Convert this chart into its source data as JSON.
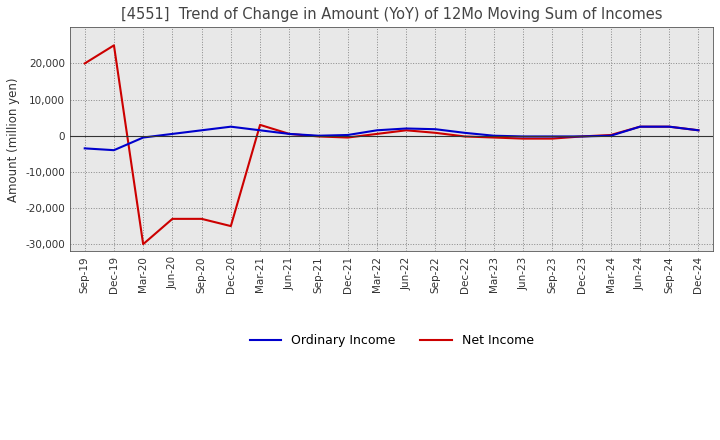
{
  "title": "[4551]  Trend of Change in Amount (YoY) of 12Mo Moving Sum of Incomes",
  "ylabel": "Amount (million yen)",
  "background_color": "#ffffff",
  "plot_bg_color": "#e8e8e8",
  "grid_color": "#aaaaaa",
  "x_labels": [
    "Sep-19",
    "Dec-19",
    "Mar-20",
    "Jun-20",
    "Sep-20",
    "Dec-20",
    "Mar-21",
    "Jun-21",
    "Sep-21",
    "Dec-21",
    "Mar-22",
    "Jun-22",
    "Sep-22",
    "Dec-22",
    "Mar-23",
    "Jun-23",
    "Sep-23",
    "Dec-23",
    "Mar-24",
    "Jun-24",
    "Sep-24",
    "Dec-24"
  ],
  "ordinary_income": [
    -3500,
    -4000,
    -500,
    500,
    1500,
    2500,
    1500,
    500,
    0,
    200,
    1500,
    2000,
    1800,
    800,
    0,
    -200,
    -200,
    -200,
    0,
    2500,
    2500,
    1500
  ],
  "net_income": [
    20000,
    25000,
    -30000,
    -23000,
    -23000,
    -25000,
    3000,
    500,
    -200,
    -500,
    500,
    1500,
    800,
    -200,
    -500,
    -800,
    -800,
    -200,
    200,
    2500,
    2500,
    1500
  ],
  "ordinary_color": "#0000cc",
  "net_color": "#cc0000",
  "ylim": [
    -32000,
    30000
  ],
  "yticks": [
    -30000,
    -20000,
    -10000,
    0,
    10000,
    20000
  ],
  "line_width": 1.5,
  "title_color": "#444444",
  "title_fontsize": 10.5,
  "tick_fontsize": 7.5,
  "ylabel_fontsize": 8.5
}
